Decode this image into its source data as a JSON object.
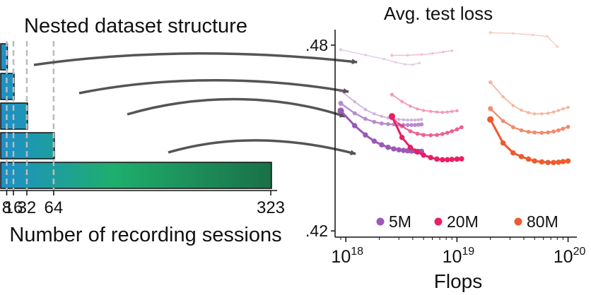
{
  "left": {
    "title": "Nested dataset structure",
    "xlabel": "Number of recording sessions",
    "bars": [
      8,
      16,
      32,
      64,
      323
    ],
    "ticks": [
      "8",
      "16",
      "32",
      "64",
      "323"
    ],
    "xmax": 323
  },
  "chart_data": {
    "type": "line",
    "title": "Avg. test loss",
    "xlabel": "Flops",
    "xscale": "log",
    "xlim": [
      8e+17,
      1.2e+20
    ],
    "ylim": [
      0.418,
      0.485
    ],
    "yticks": [
      ".48",
      ".42"
    ],
    "ytick_values": [
      0.48,
      0.42
    ],
    "xticks": [
      {
        "base": "10",
        "exp": "18",
        "value": 1e+18
      },
      {
        "base": "10",
        "exp": "19",
        "value": 1e+19
      },
      {
        "base": "10",
        "exp": "20",
        "value": 1e+20
      }
    ],
    "legend": [
      {
        "name": "5M",
        "color": "#9b59b6"
      },
      {
        "name": "20M",
        "color": "#e91e63"
      },
      {
        "name": "80M",
        "color": "#ee5a2f"
      }
    ],
    "series": [
      {
        "model": "5M",
        "sessions": 8,
        "color": "#9b59b6",
        "opacity": 0.3,
        "size": 1.6,
        "x": [
          9e+17,
          1.5e+18,
          2.2e+18,
          2.8e+18,
          3.4e+18,
          4e+18,
          4.6e+18
        ],
        "y": [
          0.4785,
          0.4768,
          0.4755,
          0.4745,
          0.4738,
          0.4737,
          0.4742
        ]
      },
      {
        "model": "5M",
        "sessions": 16,
        "color": "#9b59b6",
        "opacity": 0.45,
        "size": 2.0,
        "x": [
          9e+17,
          1.2e+18,
          1.5e+18,
          1.8e+18,
          2.1e+18,
          2.4e+18,
          2.7e+18,
          3e+18,
          3.3e+18,
          3.6e+18,
          3.9e+18,
          4.2e+18,
          4.5e+18,
          4.8e+18
        ],
        "y": [
          0.4653,
          0.4617,
          0.4592,
          0.4578,
          0.457,
          0.4565,
          0.4562,
          0.456,
          0.4559,
          0.4558,
          0.4558,
          0.4558,
          0.4559,
          0.456
        ]
      },
      {
        "model": "5M",
        "sessions": 32,
        "color": "#9b59b6",
        "opacity": 0.7,
        "size": 2.6,
        "x": [
          9e+17,
          1.2e+18,
          1.5e+18,
          1.8e+18,
          2.1e+18,
          2.4e+18,
          2.7e+18,
          3e+18,
          3.3e+18,
          3.6e+18,
          3.9e+18,
          4.2e+18,
          4.5e+18,
          4.8e+18
        ],
        "y": [
          0.4612,
          0.458,
          0.4562,
          0.4552,
          0.4547,
          0.4545,
          0.4544,
          0.4543,
          0.4542,
          0.4542,
          0.4542,
          0.4542,
          0.4543,
          0.4544
        ]
      },
      {
        "model": "5M",
        "sessions": 64,
        "color": "#9b59b6",
        "opacity": 1.0,
        "size": 3.4,
        "x": [
          9e+17,
          1.2e+18,
          1.5e+18,
          1.8e+18,
          2.1e+18,
          2.4e+18,
          2.7e+18,
          3e+18,
          3.3e+18,
          3.6e+18,
          3.9e+18,
          4.2e+18,
          4.5e+18,
          4.8e+18
        ],
        "y": [
          0.4588,
          0.454,
          0.451,
          0.449,
          0.4478,
          0.447,
          0.4465,
          0.4462,
          0.446,
          0.4459,
          0.4458,
          0.4458,
          0.4457,
          0.4457
        ]
      },
      {
        "model": "20M",
        "sessions": 8,
        "color": "#e91e63",
        "opacity": 0.3,
        "size": 1.6,
        "x": [
          2.6e+18,
          3.6e+18,
          4.8e+18,
          6e+18,
          7.5e+18,
          9e+18
        ],
        "y": [
          0.4767,
          0.4767,
          0.477,
          0.4773,
          0.4778,
          0.4782
        ]
      },
      {
        "model": "20M",
        "sessions": 16,
        "color": "#e91e63",
        "opacity": 0.45,
        "size": 2.0,
        "x": [
          2.6e+18,
          3.2e+18,
          3.8e+18,
          4.4e+18,
          5e+18,
          5.8e+18,
          6.6e+18,
          7.4e+18,
          8.2e+18,
          9e+18,
          1e+19
        ],
        "y": [
          0.464,
          0.4618,
          0.4603,
          0.4594,
          0.4589,
          0.4586,
          0.4584,
          0.4583,
          0.4584,
          0.4586,
          0.4588
        ]
      },
      {
        "model": "20M",
        "sessions": 32,
        "color": "#e91e63",
        "opacity": 0.7,
        "size": 2.6,
        "x": [
          2.6e+18,
          3.2e+18,
          3.8e+18,
          4.4e+18,
          5e+18,
          5.8e+18,
          6.6e+18,
          7.4e+18,
          8.2e+18,
          9e+18,
          1e+19,
          1.1e+19
        ],
        "y": [
          0.4565,
          0.4538,
          0.4522,
          0.4514,
          0.451,
          0.4509,
          0.451,
          0.4513,
          0.4517,
          0.4522,
          0.4528,
          0.4535
        ]
      },
      {
        "model": "20M",
        "sessions": 64,
        "color": "#e91e63",
        "opacity": 1.0,
        "size": 3.4,
        "x": [
          2.6e+18,
          3.2e+18,
          3.8e+18,
          4.4e+18,
          5e+18,
          5.8e+18,
          6.6e+18,
          7.4e+18,
          8.2e+18,
          9e+18,
          1e+19,
          1.1e+19
        ],
        "y": [
          0.457,
          0.4502,
          0.447,
          0.4455,
          0.4445,
          0.4437,
          0.4432,
          0.443,
          0.443,
          0.4431,
          0.4432,
          0.4433
        ]
      },
      {
        "model": "80M",
        "sessions": 8,
        "color": "#ee5a2f",
        "opacity": 0.3,
        "size": 1.6,
        "x": [
          2e+19,
          3.2e+19,
          4.8e+19,
          6.5e+19,
          8e+19
        ],
        "y": [
          0.484,
          0.4838,
          0.4833,
          0.4828,
          0.4795
        ]
      },
      {
        "model": "80M",
        "sessions": 16,
        "color": "#ee5a2f",
        "opacity": 0.45,
        "size": 2.0,
        "x": [
          2e+19,
          2.6e+19,
          3.2e+19,
          3.8e+19,
          4.4e+19,
          5e+19,
          5.8e+19,
          6.6e+19,
          7.4e+19,
          8.2e+19,
          9e+19,
          1e+20
        ],
        "y": [
          0.468,
          0.4633,
          0.4605,
          0.459,
          0.4582,
          0.4578,
          0.4578,
          0.458,
          0.4584,
          0.4589,
          0.4594,
          0.4599
        ]
      },
      {
        "model": "80M",
        "sessions": 32,
        "color": "#ee5a2f",
        "opacity": 0.7,
        "size": 2.6,
        "x": [
          2e+19,
          2.6e+19,
          3.2e+19,
          3.8e+19,
          4.4e+19,
          5e+19,
          5.8e+19,
          6.6e+19,
          7.4e+19,
          8.2e+19,
          9e+19,
          1e+20
        ],
        "y": [
          0.4595,
          0.4555,
          0.4535,
          0.4525,
          0.452,
          0.4518,
          0.4517,
          0.4518,
          0.4521,
          0.4525,
          0.453,
          0.4536
        ]
      },
      {
        "model": "80M",
        "sessions": 64,
        "color": "#ee5a2f",
        "opacity": 1.0,
        "size": 3.4,
        "x": [
          2e+19,
          2.6e+19,
          3.2e+19,
          3.8e+19,
          4.4e+19,
          5e+19,
          5.8e+19,
          6.6e+19,
          7.4e+19,
          8.2e+19,
          9e+19,
          1e+20
        ],
        "y": [
          0.456,
          0.4484,
          0.4452,
          0.444,
          0.4432,
          0.4426,
          0.4423,
          0.4421,
          0.4421,
          0.4422,
          0.4424,
          0.4426
        ]
      }
    ]
  }
}
